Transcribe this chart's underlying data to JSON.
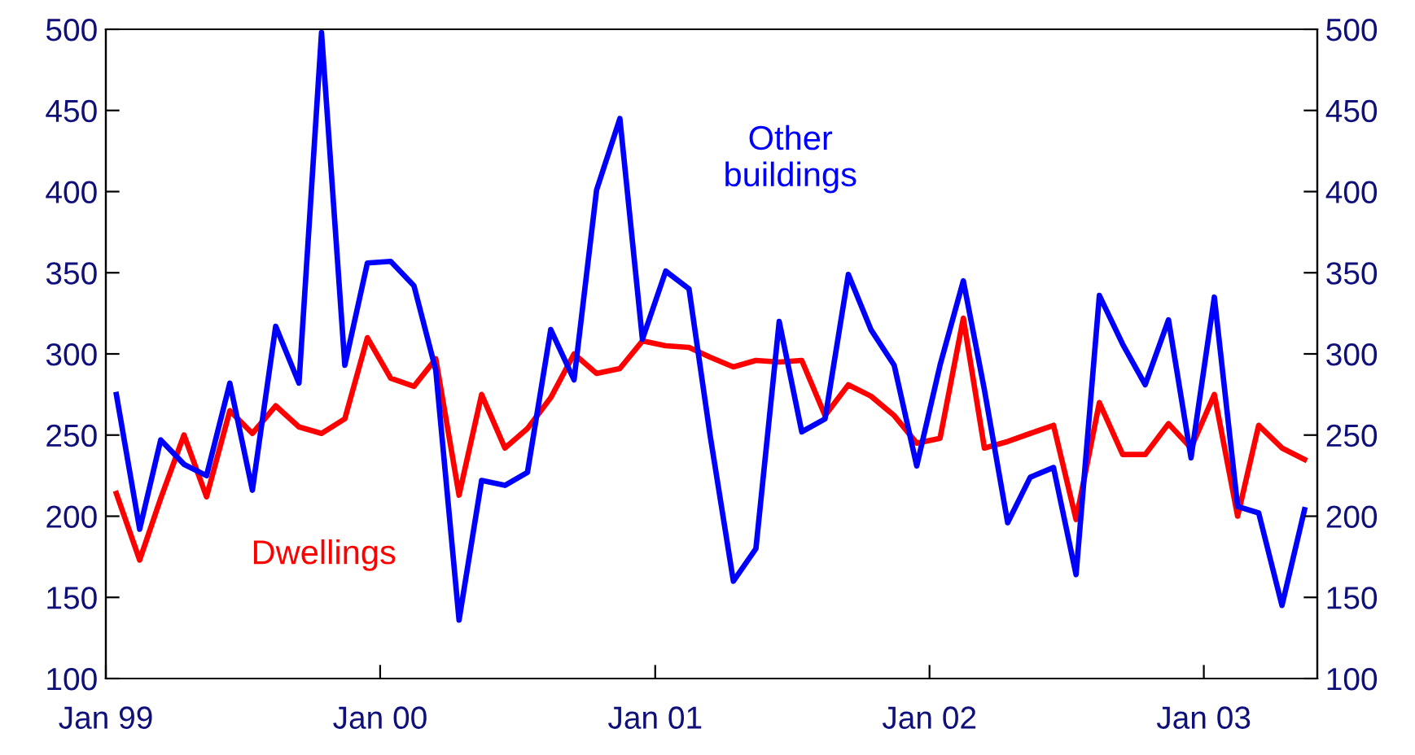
{
  "chart_data": {
    "type": "line",
    "x": [
      "1999-01-15",
      "1999-02-15",
      "1999-03-15",
      "1999-04-15",
      "1999-05-15",
      "1999-06-15",
      "1999-07-15",
      "1999-08-15",
      "1999-09-15",
      "1999-10-15",
      "1999-11-15",
      "1999-12-15",
      "2000-01-15",
      "2000-02-15",
      "2000-03-15",
      "2000-04-15",
      "2000-05-15",
      "2000-06-15",
      "2000-07-15",
      "2000-08-15",
      "2000-09-15",
      "2000-10-15",
      "2000-11-15",
      "2000-12-15",
      "2001-01-15",
      "2001-02-15",
      "2001-03-15",
      "2001-04-15",
      "2001-05-15",
      "2001-06-15",
      "2001-07-15",
      "2001-08-15",
      "2001-09-15",
      "2001-10-15",
      "2001-11-15",
      "2001-12-15",
      "2002-01-15",
      "2002-02-15",
      "2002-03-15",
      "2002-04-15",
      "2002-05-15",
      "2002-06-15",
      "2002-07-15",
      "2002-08-15",
      "2002-09-15",
      "2002-10-15",
      "2002-11-15",
      "2002-12-15",
      "2003-01-15",
      "2003-02-15",
      "2003-03-15",
      "2003-04-15",
      "2003-05-15"
    ],
    "series": [
      {
        "name": "Dwellings",
        "color": "#ff0000",
        "values": [
          214,
          173,
          211,
          250,
          212,
          265,
          251,
          268,
          255,
          251,
          260,
          310,
          285,
          280,
          297,
          213,
          275,
          242,
          254,
          273,
          300,
          288,
          291,
          308,
          305,
          304,
          298,
          292,
          296,
          295,
          296,
          262,
          281,
          274,
          262,
          245,
          248,
          322,
          242,
          246,
          251,
          256,
          198,
          270,
          238,
          238,
          257,
          242,
          275,
          200,
          256,
          242,
          235
        ]
      },
      {
        "name": "Other buildings",
        "color": "#0000ff",
        "values": [
          275,
          192,
          247,
          232,
          225,
          282,
          216,
          317,
          282,
          498,
          293,
          356,
          357,
          342,
          290,
          136,
          222,
          219,
          227,
          315,
          284,
          401,
          445,
          309,
          351,
          340,
          250,
          160,
          180,
          320,
          252,
          260,
          349,
          315,
          293,
          231,
          293,
          345,
          278,
          196,
          224,
          230,
          164,
          336,
          306,
          281,
          321,
          236,
          335,
          206,
          202,
          145,
          204
        ]
      }
    ],
    "xlim": [
      "1999-01-01",
      "2003-06-01"
    ],
    "xticks": [
      {
        "value": "1999-01-01",
        "label": "Jan 99"
      },
      {
        "value": "2000-01-01",
        "label": "Jan 00"
      },
      {
        "value": "2001-01-01",
        "label": "Jan 01"
      },
      {
        "value": "2002-01-01",
        "label": "Jan 02"
      },
      {
        "value": "2003-01-01",
        "label": "Jan 03"
      }
    ],
    "ylim": [
      100,
      500
    ],
    "yticks": [
      100,
      150,
      200,
      250,
      300,
      350,
      400,
      450,
      500
    ],
    "y2lim": [
      100,
      500
    ],
    "y2ticks": [
      100,
      150,
      200,
      250,
      300,
      350,
      400,
      450,
      500
    ],
    "grid": false,
    "legend": false,
    "marker": "none",
    "line_style": "solid"
  }
}
